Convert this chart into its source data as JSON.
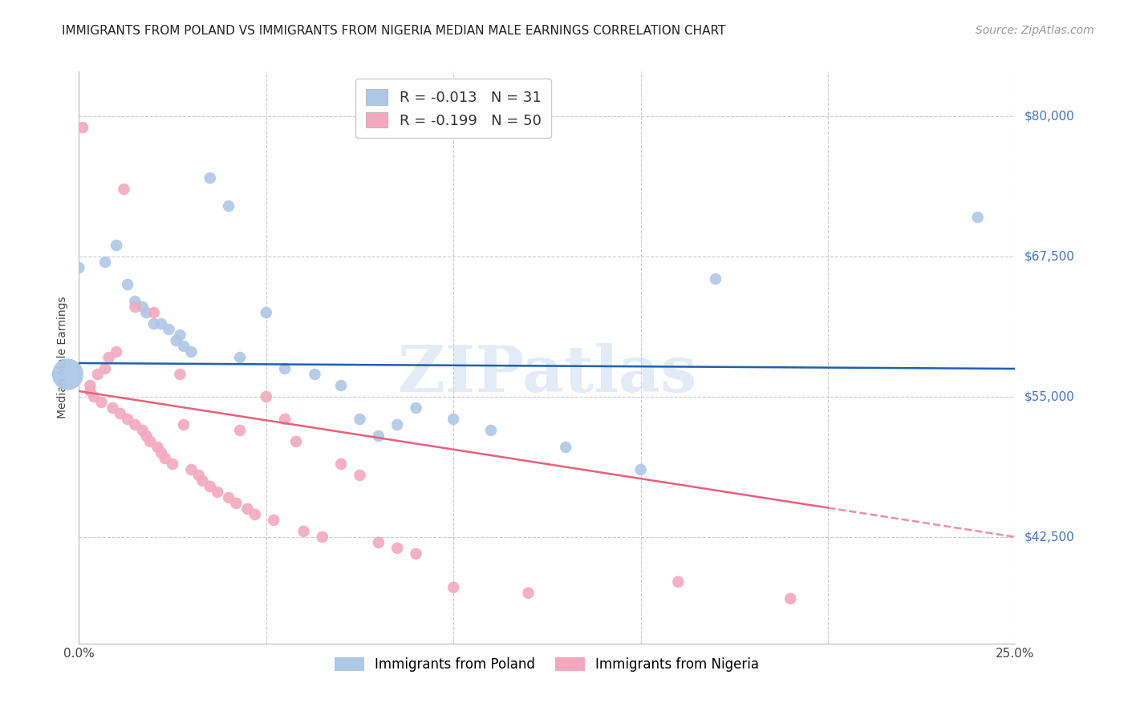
{
  "title": "IMMIGRANTS FROM POLAND VS IMMIGRANTS FROM NIGERIA MEDIAN MALE EARNINGS CORRELATION CHART",
  "source": "Source: ZipAtlas.com",
  "ylabel": "Median Male Earnings",
  "xlim": [
    0.0,
    0.25
  ],
  "ylim": [
    33000,
    84000
  ],
  "yticks": [
    42500,
    55000,
    67500,
    80000
  ],
  "ytick_labels": [
    "$42,500",
    "$55,000",
    "$67,500",
    "$80,000"
  ],
  "xticks": [
    0.0,
    0.05,
    0.1,
    0.15,
    0.2,
    0.25
  ],
  "xtick_labels": [
    "0.0%",
    "",
    "",
    "",
    "",
    "25.0%"
  ],
  "poland_R": -0.013,
  "poland_N": 31,
  "nigeria_R": -0.199,
  "nigeria_N": 50,
  "poland_color": "#adc8e6",
  "nigeria_color": "#f4a8bf",
  "poland_line_color": "#2060b0",
  "nigeria_line_color": "#e8607a",
  "background_color": "#ffffff",
  "grid_color": "#cccccc",
  "watermark": "ZIPatlas",
  "poland_scatter": [
    [
      0.0,
      66500
    ],
    [
      0.007,
      67000
    ],
    [
      0.01,
      68500
    ],
    [
      0.013,
      65000
    ],
    [
      0.015,
      63500
    ],
    [
      0.017,
      63000
    ],
    [
      0.018,
      62500
    ],
    [
      0.02,
      61500
    ],
    [
      0.022,
      61500
    ],
    [
      0.024,
      61000
    ],
    [
      0.026,
      60000
    ],
    [
      0.027,
      60500
    ],
    [
      0.028,
      59500
    ],
    [
      0.03,
      59000
    ],
    [
      0.035,
      74500
    ],
    [
      0.04,
      72000
    ],
    [
      0.043,
      58500
    ],
    [
      0.05,
      62500
    ],
    [
      0.055,
      57500
    ],
    [
      0.063,
      57000
    ],
    [
      0.07,
      56000
    ],
    [
      0.075,
      53000
    ],
    [
      0.08,
      51500
    ],
    [
      0.085,
      52500
    ],
    [
      0.09,
      54000
    ],
    [
      0.1,
      53000
    ],
    [
      0.11,
      52000
    ],
    [
      0.13,
      50500
    ],
    [
      0.15,
      48500
    ],
    [
      0.17,
      65500
    ],
    [
      0.24,
      71000
    ]
  ],
  "nigeria_scatter": [
    [
      0.001,
      79000
    ],
    [
      0.012,
      73500
    ],
    [
      0.015,
      63000
    ],
    [
      0.02,
      62500
    ],
    [
      0.01,
      59000
    ],
    [
      0.008,
      58500
    ],
    [
      0.007,
      57500
    ],
    [
      0.005,
      57000
    ],
    [
      0.003,
      56000
    ],
    [
      0.003,
      55500
    ],
    [
      0.004,
      55000
    ],
    [
      0.006,
      54500
    ],
    [
      0.009,
      54000
    ],
    [
      0.011,
      53500
    ],
    [
      0.013,
      53000
    ],
    [
      0.015,
      52500
    ],
    [
      0.017,
      52000
    ],
    [
      0.018,
      51500
    ],
    [
      0.019,
      51000
    ],
    [
      0.021,
      50500
    ],
    [
      0.022,
      50000
    ],
    [
      0.023,
      49500
    ],
    [
      0.025,
      49000
    ],
    [
      0.027,
      57000
    ],
    [
      0.028,
      52500
    ],
    [
      0.03,
      48500
    ],
    [
      0.032,
      48000
    ],
    [
      0.033,
      47500
    ],
    [
      0.035,
      47000
    ],
    [
      0.037,
      46500
    ],
    [
      0.04,
      46000
    ],
    [
      0.042,
      45500
    ],
    [
      0.043,
      52000
    ],
    [
      0.045,
      45000
    ],
    [
      0.047,
      44500
    ],
    [
      0.05,
      55000
    ],
    [
      0.052,
      44000
    ],
    [
      0.055,
      53000
    ],
    [
      0.058,
      51000
    ],
    [
      0.06,
      43000
    ],
    [
      0.065,
      42500
    ],
    [
      0.07,
      49000
    ],
    [
      0.075,
      48000
    ],
    [
      0.08,
      42000
    ],
    [
      0.085,
      41500
    ],
    [
      0.09,
      41000
    ],
    [
      0.1,
      38000
    ],
    [
      0.12,
      37500
    ],
    [
      0.16,
      38500
    ],
    [
      0.19,
      37000
    ]
  ],
  "title_fontsize": 11,
  "axis_label_fontsize": 10,
  "tick_fontsize": 11,
  "legend_fontsize": 13,
  "source_fontsize": 10,
  "marker_size": 110
}
